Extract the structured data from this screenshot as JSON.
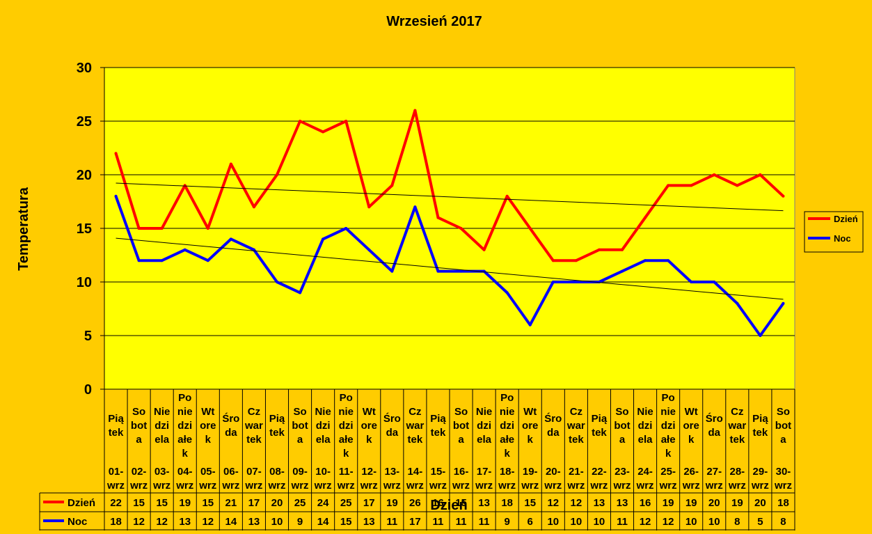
{
  "chart_data": {
    "type": "line",
    "title": "Wrzesień 2017",
    "xlabel": "Dzień",
    "ylabel": "Temperatura",
    "ylim": [
      0,
      30
    ],
    "yticks": [
      0,
      5,
      10,
      15,
      20,
      25,
      30
    ],
    "grid": true,
    "legend_position": "right",
    "categories": [
      {
        "weekday": [
          "Pią",
          "tek"
        ],
        "date": [
          "01-",
          "wrz"
        ]
      },
      {
        "weekday": [
          "So",
          "bot",
          "a"
        ],
        "date": [
          "02-",
          "wrz"
        ]
      },
      {
        "weekday": [
          "Nie",
          "dzi",
          "ela"
        ],
        "date": [
          "03-",
          "wrz"
        ]
      },
      {
        "weekday": [
          "Po",
          "nie",
          "dzi",
          "ałe",
          "k"
        ],
        "date": [
          "04-",
          "wrz"
        ]
      },
      {
        "weekday": [
          "Wt",
          "ore",
          "k"
        ],
        "date": [
          "05-",
          "wrz"
        ]
      },
      {
        "weekday": [
          "Śro",
          "da"
        ],
        "date": [
          "06-",
          "wrz"
        ]
      },
      {
        "weekday": [
          "Cz",
          "war",
          "tek"
        ],
        "date": [
          "07-",
          "wrz"
        ]
      },
      {
        "weekday": [
          "Pią",
          "tek"
        ],
        "date": [
          "08-",
          "wrz"
        ]
      },
      {
        "weekday": [
          "So",
          "bot",
          "a"
        ],
        "date": [
          "09-",
          "wrz"
        ]
      },
      {
        "weekday": [
          "Nie",
          "dzi",
          "ela"
        ],
        "date": [
          "10-",
          "wrz"
        ]
      },
      {
        "weekday": [
          "Po",
          "nie",
          "dzi",
          "ałe",
          "k"
        ],
        "date": [
          "11-",
          "wrz"
        ]
      },
      {
        "weekday": [
          "Wt",
          "ore",
          "k"
        ],
        "date": [
          "12-",
          "wrz"
        ]
      },
      {
        "weekday": [
          "Śro",
          "da"
        ],
        "date": [
          "13-",
          "wrz"
        ]
      },
      {
        "weekday": [
          "Cz",
          "war",
          "tek"
        ],
        "date": [
          "14-",
          "wrz"
        ]
      },
      {
        "weekday": [
          "Pią",
          "tek"
        ],
        "date": [
          "15-",
          "wrz"
        ]
      },
      {
        "weekday": [
          "So",
          "bot",
          "a"
        ],
        "date": [
          "16-",
          "wrz"
        ]
      },
      {
        "weekday": [
          "Nie",
          "dzi",
          "ela"
        ],
        "date": [
          "17-",
          "wrz"
        ]
      },
      {
        "weekday": [
          "Po",
          "nie",
          "dzi",
          "ałe",
          "k"
        ],
        "date": [
          "18-",
          "wrz"
        ]
      },
      {
        "weekday": [
          "Wt",
          "ore",
          "k"
        ],
        "date": [
          "19-",
          "wrz"
        ]
      },
      {
        "weekday": [
          "Śro",
          "da"
        ],
        "date": [
          "20-",
          "wrz"
        ]
      },
      {
        "weekday": [
          "Cz",
          "war",
          "tek"
        ],
        "date": [
          "21-",
          "wrz"
        ]
      },
      {
        "weekday": [
          "Pią",
          "tek"
        ],
        "date": [
          "22-",
          "wrz"
        ]
      },
      {
        "weekday": [
          "So",
          "bot",
          "a"
        ],
        "date": [
          "23-",
          "wrz"
        ]
      },
      {
        "weekday": [
          "Nie",
          "dzi",
          "ela"
        ],
        "date": [
          "24-",
          "wrz"
        ]
      },
      {
        "weekday": [
          "Po",
          "nie",
          "dzi",
          "ałe",
          "k"
        ],
        "date": [
          "25-",
          "wrz"
        ]
      },
      {
        "weekday": [
          "Wt",
          "ore",
          "k"
        ],
        "date": [
          "26-",
          "wrz"
        ]
      },
      {
        "weekday": [
          "Śro",
          "da"
        ],
        "date": [
          "27-",
          "wrz"
        ]
      },
      {
        "weekday": [
          "Cz",
          "war",
          "tek"
        ],
        "date": [
          "28-",
          "wrz"
        ]
      },
      {
        "weekday": [
          "Pią",
          "tek"
        ],
        "date": [
          "29-",
          "wrz"
        ]
      },
      {
        "weekday": [
          "So",
          "bot",
          "a"
        ],
        "date": [
          "30-",
          "wrz"
        ]
      }
    ],
    "series": [
      {
        "name": "Dzień",
        "color": "#FF0000",
        "values": [
          22,
          15,
          15,
          19,
          15,
          21,
          17,
          20,
          25,
          24,
          25,
          17,
          19,
          26,
          16,
          15,
          13,
          18,
          15,
          12,
          12,
          13,
          13,
          16,
          19,
          19,
          20,
          19,
          20,
          18
        ]
      },
      {
        "name": "Noc",
        "color": "#0000FF",
        "values": [
          18,
          12,
          12,
          13,
          12,
          14,
          13,
          10,
          9,
          14,
          15,
          13,
          11,
          17,
          11,
          11,
          11,
          9,
          6,
          10,
          10,
          10,
          11,
          12,
          12,
          10,
          10,
          8,
          5,
          8
        ]
      }
    ],
    "trendlines": [
      {
        "series": "Dzień",
        "type": "linear",
        "color": "#000000"
      },
      {
        "series": "Noc",
        "type": "linear",
        "color": "#000000"
      }
    ],
    "data_table": true,
    "colors": {
      "background": "#FFCC00",
      "plot_area": "#FFFF00"
    }
  }
}
